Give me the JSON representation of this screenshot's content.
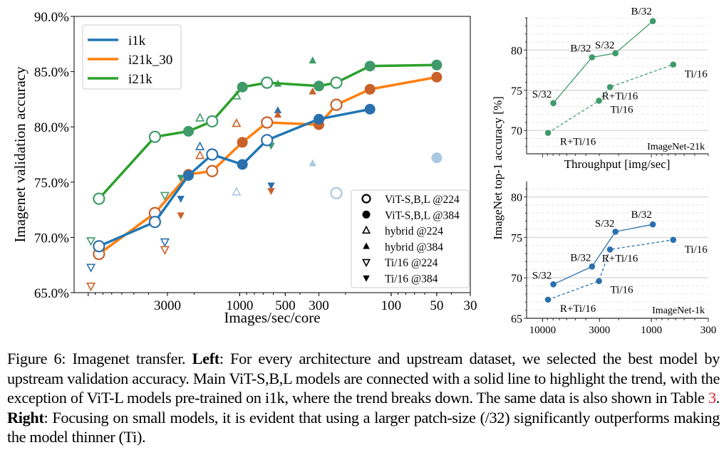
{
  "chart_data": [
    {
      "type": "scatter",
      "xlabel": "Images/sec/core",
      "ylabel": "Imagenet validation accuracy",
      "x_scale": "log",
      "x_reversed": true,
      "xlim": [
        12400,
        30
      ],
      "ylim": [
        65,
        90
      ],
      "xticks": [
        3000,
        1000,
        500,
        300,
        100,
        50,
        30
      ],
      "yticks": [
        "65.0%",
        "70.0%",
        "75.0%",
        "80.0%",
        "85.0%",
        "90.0%"
      ],
      "ytick_values": [
        65,
        70,
        75,
        80,
        85,
        90
      ],
      "grid": false,
      "legend_lines": {
        "placement": "top-left",
        "entries": [
          {
            "name": "i1k",
            "color": "#1f77b4"
          },
          {
            "name": "i21k_30",
            "color": "#ff7f0e"
          },
          {
            "name": "i21k",
            "color": "#2ca02c"
          }
        ]
      },
      "legend_markers": {
        "placement": "bottom-right",
        "entries": [
          {
            "label": "ViT-S,B,L @224",
            "marker": "circle",
            "filled": false
          },
          {
            "label": "ViT-S,B,L @384",
            "marker": "circle",
            "filled": true
          },
          {
            "label": "hybrid @224",
            "marker": "triangle-up",
            "filled": false
          },
          {
            "label": "hybrid @384",
            "marker": "triangle-up",
            "filled": true
          },
          {
            "label": "Ti/16 @224",
            "marker": "triangle-down",
            "filled": false
          },
          {
            "label": "Ti/16 @384",
            "marker": "triangle-down",
            "filled": true
          }
        ]
      },
      "series": [
        {
          "name": "i21k",
          "line_color": "#2ca02c",
          "marker_color": "#3f9a6a",
          "x": [
            8500,
            3630,
            2180,
            1520,
            960,
            660,
            300,
            230,
            138,
            50
          ],
          "y": [
            73.5,
            79.1,
            79.6,
            80.5,
            83.6,
            84.0,
            83.7,
            84.0,
            85.5,
            85.6
          ],
          "filled": [
            false,
            false,
            true,
            false,
            true,
            false,
            true,
            false,
            true,
            true
          ]
        },
        {
          "name": "i21k_30",
          "line_color": "#ff7f0e",
          "marker_color": "#c9612a",
          "x": [
            8500,
            3630,
            2180,
            1520,
            960,
            660,
            300,
            230,
            138,
            50
          ],
          "y": [
            68.5,
            72.2,
            75.7,
            76.0,
            78.6,
            80.4,
            80.2,
            82.0,
            83.4,
            84.5
          ],
          "filled": [
            false,
            false,
            true,
            false,
            true,
            false,
            true,
            false,
            true,
            true
          ]
        },
        {
          "name": "i1k",
          "line_color": "#1f77b4",
          "marker_color": "#2b70ae",
          "x": [
            8500,
            3630,
            2180,
            1520,
            960,
            660,
            300,
            138
          ],
          "y": [
            69.2,
            71.4,
            75.6,
            77.5,
            76.6,
            78.8,
            80.7,
            81.6
          ],
          "filled": [
            false,
            false,
            true,
            false,
            true,
            false,
            true,
            true
          ]
        }
      ],
      "extra_points": [
        {
          "group": "i1k",
          "marker": "circle",
          "filled": false,
          "faded": true,
          "x": 230,
          "y": 74.0
        },
        {
          "group": "i1k",
          "marker": "circle",
          "filled": true,
          "faded": true,
          "x": 50,
          "y": 77.2
        },
        {
          "group": "i21k",
          "marker": "triangle-up",
          "filled": false,
          "x": 1830,
          "y": 80.8
        },
        {
          "group": "i1k",
          "marker": "triangle-up",
          "filled": false,
          "x": 1830,
          "y": 78.2
        },
        {
          "group": "i21k_30",
          "marker": "triangle-up",
          "filled": false,
          "x": 1830,
          "y": 77.4
        },
        {
          "group": "i21k",
          "marker": "triangle-up",
          "filled": false,
          "x": 1050,
          "y": 82.8
        },
        {
          "group": "i21k_30",
          "marker": "triangle-up",
          "filled": false,
          "x": 1050,
          "y": 80.3
        },
        {
          "group": "i1k",
          "marker": "triangle-up",
          "filled": false,
          "faded": true,
          "x": 1050,
          "y": 74.1
        },
        {
          "group": "i21k",
          "marker": "triangle-up",
          "filled": true,
          "x": 560,
          "y": 83.9
        },
        {
          "group": "i1k",
          "marker": "triangle-up",
          "filled": true,
          "x": 560,
          "y": 81.5
        },
        {
          "group": "i21k_30",
          "marker": "triangle-up",
          "filled": true,
          "x": 560,
          "y": 81.1
        },
        {
          "group": "i21k",
          "marker": "triangle-up",
          "filled": true,
          "x": 330,
          "y": 86.0
        },
        {
          "group": "i21k_30",
          "marker": "triangle-up",
          "filled": true,
          "x": 330,
          "y": 83.2
        },
        {
          "group": "i1k",
          "marker": "triangle-up",
          "filled": true,
          "faded": true,
          "x": 330,
          "y": 76.7
        },
        {
          "group": "i21k",
          "marker": "triangle-down",
          "filled": false,
          "x": 9600,
          "y": 69.7
        },
        {
          "group": "i1k",
          "marker": "triangle-down",
          "filled": false,
          "x": 9600,
          "y": 67.3
        },
        {
          "group": "i21k_30",
          "marker": "triangle-down",
          "filled": false,
          "x": 9600,
          "y": 65.6
        },
        {
          "group": "i21k",
          "marker": "triangle-down",
          "filled": false,
          "x": 3120,
          "y": 73.8
        },
        {
          "group": "i1k",
          "marker": "triangle-down",
          "filled": false,
          "x": 3120,
          "y": 69.6
        },
        {
          "group": "i21k_30",
          "marker": "triangle-down",
          "filled": false,
          "x": 3120,
          "y": 68.9
        },
        {
          "group": "i21k",
          "marker": "triangle-down",
          "filled": true,
          "x": 2450,
          "y": 75.4
        },
        {
          "group": "i1k",
          "marker": "triangle-down",
          "filled": true,
          "x": 2450,
          "y": 73.5
        },
        {
          "group": "i21k_30",
          "marker": "triangle-down",
          "filled": true,
          "x": 2450,
          "y": 72.0
        },
        {
          "group": "i21k",
          "marker": "triangle-down",
          "filled": true,
          "x": 620,
          "y": 78.3
        },
        {
          "group": "i1k",
          "marker": "triangle-down",
          "filled": true,
          "x": 620,
          "y": 74.7
        },
        {
          "group": "i21k_30",
          "marker": "triangle-down",
          "filled": true,
          "x": 620,
          "y": 74.2
        }
      ],
      "faded_color": "#a9c7e1"
    },
    {
      "type": "line",
      "panel_label": "ImageNet-21k",
      "xlabel": "Throughput [img/sec]",
      "ylabel": "ImageNet top-1 accuracy [%]",
      "x_scale": "log",
      "x_reversed": true,
      "xlim": [
        14000,
        300
      ],
      "ylim": [
        67.1,
        84.1
      ],
      "yticks": [
        70,
        75,
        80
      ],
      "grid": true,
      "color": "#3f9a6a",
      "series": [
        {
          "style": "solid",
          "x": [
            7950,
            3510,
            2140,
            970
          ],
          "y": [
            73.4,
            79.1,
            79.6,
            83.6
          ],
          "labels": [
            "S/32",
            "B/32",
            "S/32",
            "B/32"
          ]
        },
        {
          "style": "dashed",
          "x": [
            8900,
            3030,
            2400,
            630
          ],
          "y": [
            69.7,
            73.7,
            75.4,
            78.2
          ],
          "labels": [
            "R+Ti/16",
            "Ti/16",
            "R+Ti/16",
            "Ti/16"
          ]
        }
      ]
    },
    {
      "type": "line",
      "panel_label": "ImageNet-1k",
      "x_scale": "log",
      "x_reversed": true,
      "xlim": [
        14000,
        300
      ],
      "xticks": [
        10000,
        3000,
        1000,
        300
      ],
      "ylim": [
        65,
        81.9
      ],
      "yticks": [
        65,
        70,
        75,
        80
      ],
      "grid": true,
      "color": "#2b70ae",
      "series": [
        {
          "style": "solid",
          "x": [
            7950,
            3510,
            2140,
            970
          ],
          "y": [
            69.2,
            71.4,
            75.7,
            76.6
          ],
          "labels": [
            "S/32",
            "B/32",
            "S/32",
            "B/32"
          ]
        },
        {
          "style": "dashed",
          "x": [
            8900,
            3030,
            2400,
            630
          ],
          "y": [
            67.3,
            69.6,
            73.5,
            74.7
          ],
          "labels": [
            "R+Ti/16",
            "Ti/16",
            "R+Ti/16",
            "Ti/16"
          ]
        }
      ]
    }
  ],
  "caption": {
    "prefix": "Figure 6: Imagenet transfer. ",
    "left_label": "Left",
    "left_text": ": For every architecture and upstream dataset, we selected the best model by upstream validation accuracy. Main ViT-S,B,L models are connected with a solid line to highlight the trend, with the exception of ViT-L models pre-trained on i1k, where the trend breaks down. The same data is also shown in Table ",
    "table_ref": "3",
    "mid": ". ",
    "right_label": "Right",
    "right_text": ": Focusing on small models, it is evident that using a larger patch-size (/32) significantly outperforms making the model thinner (Ti)."
  }
}
